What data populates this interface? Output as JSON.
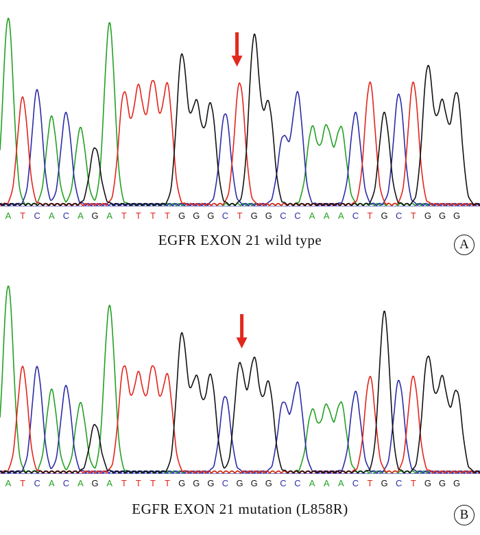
{
  "colors": {
    "A": "#22a022",
    "C": "#2b2ba8",
    "G": "#111111",
    "T": "#e3231a",
    "arrow": "#e2281e"
  },
  "chart_data": [
    {
      "type": "chromatogram",
      "panel_label": "A",
      "caption": "EGFR EXON 21 wild type",
      "sequence": [
        "A",
        "T",
        "C",
        "A",
        "C",
        "A",
        "G",
        "A",
        "T",
        "T",
        "T",
        "T",
        "G",
        "G",
        "G",
        "C",
        "T",
        "G",
        "G",
        "C",
        "C",
        "A",
        "A",
        "A",
        "C",
        "T",
        "G",
        "C",
        "T",
        "G",
        "G",
        "G"
      ],
      "peak_heights": [
        0.98,
        0.56,
        0.6,
        0.46,
        0.48,
        0.4,
        0.3,
        0.95,
        0.58,
        0.6,
        0.63,
        0.62,
        0.78,
        0.52,
        0.52,
        0.48,
        0.64,
        0.88,
        0.52,
        0.35,
        0.58,
        0.4,
        0.4,
        0.4,
        0.48,
        0.64,
        0.48,
        0.58,
        0.64,
        0.72,
        0.52,
        0.58
      ],
      "arrow_base_index": 16
    },
    {
      "type": "chromatogram",
      "panel_label": "B",
      "caption": "EGFR EXON 21 mutation (L858R)",
      "sequence": [
        "A",
        "T",
        "C",
        "A",
        "C",
        "A",
        "G",
        "A",
        "T",
        "T",
        "T",
        "T",
        "G",
        "G",
        "G",
        "C",
        "G",
        "G",
        "G",
        "C",
        "C",
        "A",
        "A",
        "A",
        "C",
        "T",
        "G",
        "C",
        "T",
        "G",
        "G",
        "G"
      ],
      "peak_heights": [
        0.98,
        0.55,
        0.55,
        0.43,
        0.45,
        0.36,
        0.25,
        0.87,
        0.55,
        0.5,
        0.54,
        0.5,
        0.72,
        0.48,
        0.5,
        0.4,
        0.56,
        0.58,
        0.46,
        0.36,
        0.46,
        0.32,
        0.34,
        0.36,
        0.42,
        0.5,
        0.84,
        0.48,
        0.5,
        0.6,
        0.48,
        0.42
      ],
      "arrow_base_index": 16
    }
  ]
}
